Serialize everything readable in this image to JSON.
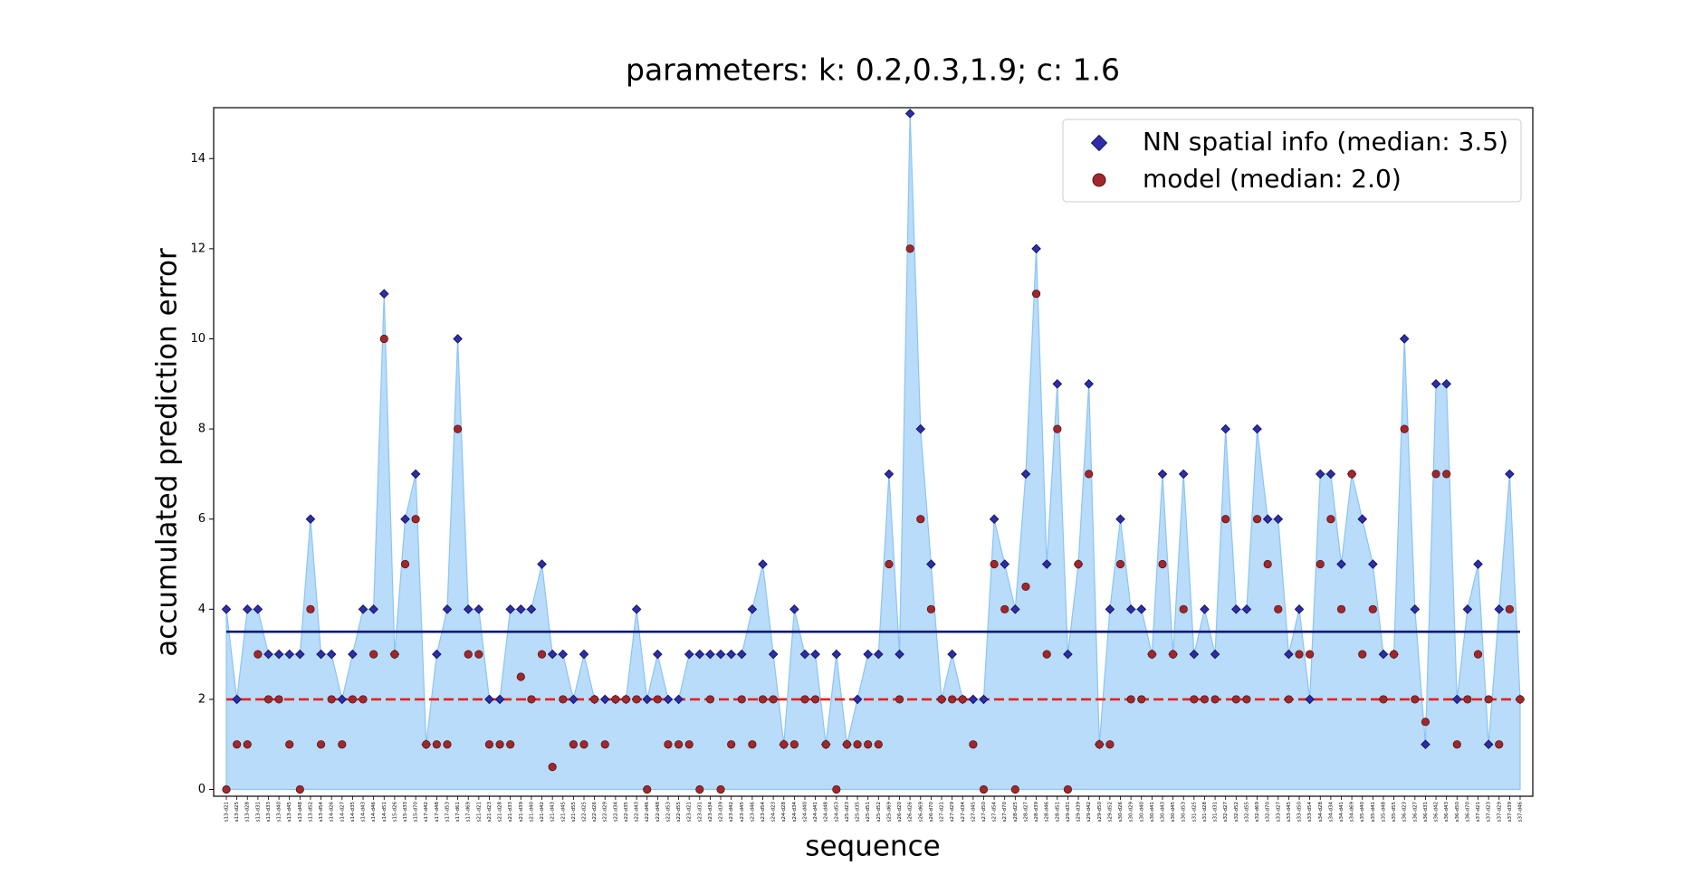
{
  "chart_data": {
    "type": "area-scatter",
    "title": "parameters: k: 0.2,0.3,1.9; c: 1.6",
    "xlabel": "sequence",
    "ylabel": "accumulated prediction error",
    "categories": [
      "s13-d21",
      "s13-d25",
      "s13-d28",
      "s13-d31",
      "s13-d33",
      "s13-d40",
      "s13-d45",
      "s13-d48",
      "s13-d52",
      "s13-d54",
      "s14-d26",
      "s14-d27",
      "s14-d35",
      "s14-d43",
      "s14-d46",
      "s14-d51",
      "s15-d26",
      "s15-d33",
      "s15-d70",
      "s17-d42",
      "s17-d48",
      "s17-d53",
      "s17-d61",
      "s17-d69",
      "s21-d21",
      "s21-d23",
      "s21-d28",
      "s21-d33",
      "s21-d39",
      "s21-d40",
      "s21-d42",
      "s21-d43",
      "s21-d45",
      "s21-d55",
      "s22-d25",
      "s22-d26",
      "s22-d29",
      "s22-d34",
      "s22-d35",
      "s22-d43",
      "s22-d46",
      "s22-d48",
      "s22-d53",
      "s22-d55",
      "s23-d21",
      "s23-d31",
      "s23-d34",
      "s23-d39",
      "s23-d42",
      "s23-d45",
      "s23-d46",
      "s23-d54",
      "s24-d23",
      "s24-d28",
      "s24-d34",
      "s24-d40",
      "s24-d41",
      "s24-d48",
      "s24-d53",
      "s25-d23",
      "s25-d35",
      "s25-d51",
      "s25-d52",
      "s25-d69",
      "s26-d20",
      "s26-d26",
      "s26-d69",
      "s26-d70",
      "s27-d21",
      "s27-d29",
      "s27-d34",
      "s27-d45",
      "s27-d50",
      "s27-d54",
      "s27-d70",
      "s28-d25",
      "s28-d27",
      "s28-d39",
      "s28-d46",
      "s28-d51",
      "s29-d31",
      "s29-d39",
      "s29-d42",
      "s29-d50",
      "s29-d52",
      "s30-d26",
      "s30-d29",
      "s30-d40",
      "s30-d41",
      "s30-d43",
      "s30-d45",
      "s30-d53",
      "s31-d25",
      "s31-d28",
      "s31-d31",
      "s32-d27",
      "s32-d52",
      "s32-d55",
      "s32-d69",
      "s32-d70",
      "s33-d27",
      "s33-d45",
      "s33-d50",
      "s33-d54",
      "s34-d28",
      "s34-d34",
      "s34-d41",
      "s34-d69",
      "s35-d40",
      "s35-d41",
      "s35-d48",
      "s35-d55",
      "s36-d23",
      "s36-d27",
      "s36-d31",
      "s36-d42",
      "s36-d43",
      "s36-d50",
      "s36-d70",
      "s37-d21",
      "s37-d23",
      "s37-d29",
      "s37-d39",
      "s37-d46"
    ],
    "series": [
      {
        "name": "NN spatial info (median: 3.5)",
        "color": "#2e2eaa",
        "marker": "diamond",
        "fill": "#b8dcfa",
        "median": 3.5,
        "median_color": "#0a1a6e",
        "median_style": "solid",
        "values": [
          4,
          2,
          4,
          4,
          3,
          3,
          3,
          3,
          6,
          3,
          3,
          2,
          3,
          4,
          4,
          11,
          3,
          6,
          7,
          1,
          3,
          4,
          10,
          4,
          4,
          2,
          2,
          4,
          4,
          4,
          5,
          3,
          3,
          2,
          3,
          2,
          2,
          2,
          2,
          4,
          2,
          3,
          2,
          2,
          3,
          3,
          3,
          3,
          3,
          3,
          4,
          5,
          3,
          1,
          4,
          3,
          3,
          1,
          3,
          1,
          2,
          3,
          3,
          7,
          3,
          15,
          8,
          5,
          2,
          3,
          2,
          2,
          2,
          6,
          5,
          4,
          7,
          12,
          5,
          9,
          3,
          5,
          9,
          1,
          4,
          6,
          4,
          4,
          3,
          7,
          3,
          7,
          3,
          4,
          3,
          8,
          4,
          4,
          8,
          6,
          6,
          3,
          4,
          2,
          7,
          7,
          5,
          7,
          6,
          5,
          3,
          3,
          10,
          4,
          1,
          9,
          9,
          2,
          4,
          5,
          1,
          4,
          7,
          2
        ]
      },
      {
        "name": "model (median: 2.0)",
        "color": "#a0282c",
        "marker": "circle",
        "median": 2.0,
        "median_color": "#e8201c",
        "median_style": "dashed",
        "values": [
          0,
          1,
          1,
          3,
          2,
          2,
          1,
          0,
          4,
          1,
          2,
          1,
          2,
          2,
          3,
          10,
          3,
          5,
          6,
          1,
          1,
          1,
          8,
          3,
          3,
          1,
          1,
          1,
          2.5,
          2,
          3,
          0.5,
          2,
          1,
          1,
          2,
          1,
          2,
          2,
          2,
          0,
          2,
          1,
          1,
          1,
          0,
          2,
          0,
          1,
          2,
          1,
          2,
          2,
          1,
          1,
          2,
          2,
          1,
          0,
          1,
          1,
          1,
          1,
          5,
          2,
          12,
          6,
          4,
          2,
          2,
          2,
          1,
          0,
          5,
          4,
          0,
          4.5,
          11,
          3,
          8,
          0,
          5,
          7,
          1,
          1,
          5,
          2,
          2,
          3,
          5,
          3,
          4,
          2,
          2,
          2,
          6,
          2,
          2,
          6,
          5,
          4,
          2,
          3,
          3,
          5,
          6,
          4,
          7,
          3,
          4,
          2,
          3,
          8,
          2,
          1.5,
          7,
          7,
          1,
          2,
          3,
          2,
          1,
          4,
          2
        ]
      }
    ],
    "ylim": [
      -0.15,
      15.13
    ],
    "yticks": [
      0,
      2,
      4,
      6,
      8,
      10,
      12,
      14
    ],
    "legend": "upper right"
  }
}
